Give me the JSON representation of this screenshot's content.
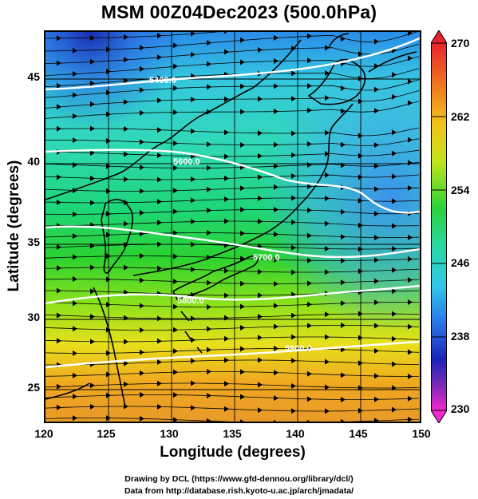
{
  "title": "MSM 00Z04Dec2023 (500.0hPa)",
  "xlabel": "Longitude (degrees)",
  "ylabel": "Latitude  (degrees)",
  "x_ticks": [
    "120",
    "125",
    "130",
    "135",
    "140",
    "145",
    "150"
  ],
  "y_ticks": [
    "45",
    "40",
    "35",
    "30",
    "25"
  ],
  "colorbar": {
    "min": 230,
    "max": 270,
    "ticks": [
      "270",
      "262",
      "254",
      "246",
      "238",
      "230"
    ]
  },
  "contour_labels": [
    "5400.0",
    "5600.0",
    "5700.0",
    "5800.0",
    "5900.0"
  ],
  "credits": {
    "line1": "Drawing by DCL (https://www.gfd-dennou.org/library/dcl/)",
    "line2": "Data from http://database.rish.kyoto-u.ac.jp/arch/jmadata/"
  },
  "map": {
    "lon_range": [
      120,
      150
    ],
    "lat_range": [
      22.5,
      47.7
    ],
    "field": "temperature (K) with streamlines and geopotential height contours"
  }
}
